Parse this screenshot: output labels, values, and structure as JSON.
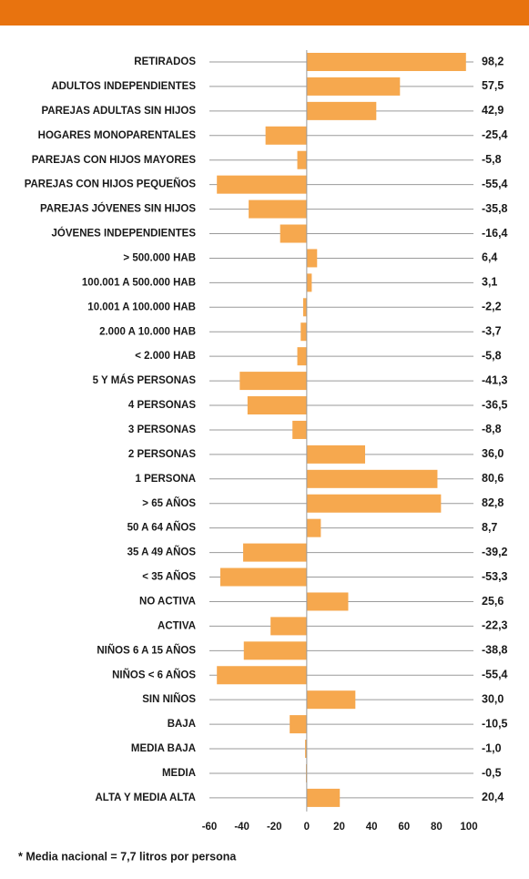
{
  "chart_data": {
    "type": "bar",
    "orientation": "horizontal",
    "categories": [
      "RETIRADOS",
      "ADULTOS INDEPENDIENTES",
      "PAREJAS ADULTAS SIN HIJOS",
      "HOGARES MONOPARENTALES",
      "PAREJAS CON HIJOS MAYORES",
      "PAREJAS CON HIJOS PEQUEÑOS",
      "PAREJAS JÓVENES SIN HIJOS",
      "JÓVENES INDEPENDIENTES",
      "> 500.000 HAB",
      "100.001 A 500.000 HAB",
      "10.001 A 100.000 HAB",
      "2.000 A 10.000 HAB",
      "< 2.000 HAB",
      "5 Y MÁS PERSONAS",
      "4 PERSONAS",
      "3 PERSONAS",
      "2 PERSONAS",
      "1 PERSONA",
      "> 65 AÑOS",
      "50 A 64 AÑOS",
      "35 A 49 AÑOS",
      "< 35 AÑOS",
      "NO ACTIVA",
      "ACTIVA",
      "NIÑOS 6 A 15 AÑOS",
      "NIÑOS < 6 AÑOS",
      "SIN NIÑOS",
      "BAJA",
      "MEDIA BAJA",
      "MEDIA",
      "ALTA Y MEDIA ALTA"
    ],
    "values": [
      98.2,
      57.5,
      42.9,
      -25.4,
      -5.8,
      -55.4,
      -35.8,
      -16.4,
      6.4,
      3.1,
      -2.2,
      -3.7,
      -5.8,
      -41.3,
      -36.5,
      -8.8,
      36.0,
      80.6,
      82.8,
      8.7,
      -39.2,
      -53.3,
      25.6,
      -22.3,
      -38.8,
      -55.4,
      30.0,
      -10.5,
      -1.0,
      -0.5,
      20.4
    ],
    "value_labels": [
      "98,2",
      "57,5",
      "42,9",
      "-25,4",
      "-5,8",
      "-55,4",
      "-35,8",
      "-16,4",
      "6,4",
      "3,1",
      "-2,2",
      "-3,7",
      "-5,8",
      "-41,3",
      "-36,5",
      "-8,8",
      "36,0",
      "80,6",
      "82,8",
      "8,7",
      "-39,2",
      "-53,3",
      "25,6",
      "-22,3",
      "-38,8",
      "-55,4",
      "30,0",
      "-10,5",
      "-1,0",
      "-0,5",
      "20,4"
    ],
    "color": "#f6a84e",
    "xlim": [
      -60,
      100
    ],
    "xticks": [
      -60,
      -40,
      -20,
      0,
      20,
      40,
      60,
      80,
      100
    ],
    "annotations": [
      "* Media nacional = 7,7 litros por persona"
    ]
  }
}
